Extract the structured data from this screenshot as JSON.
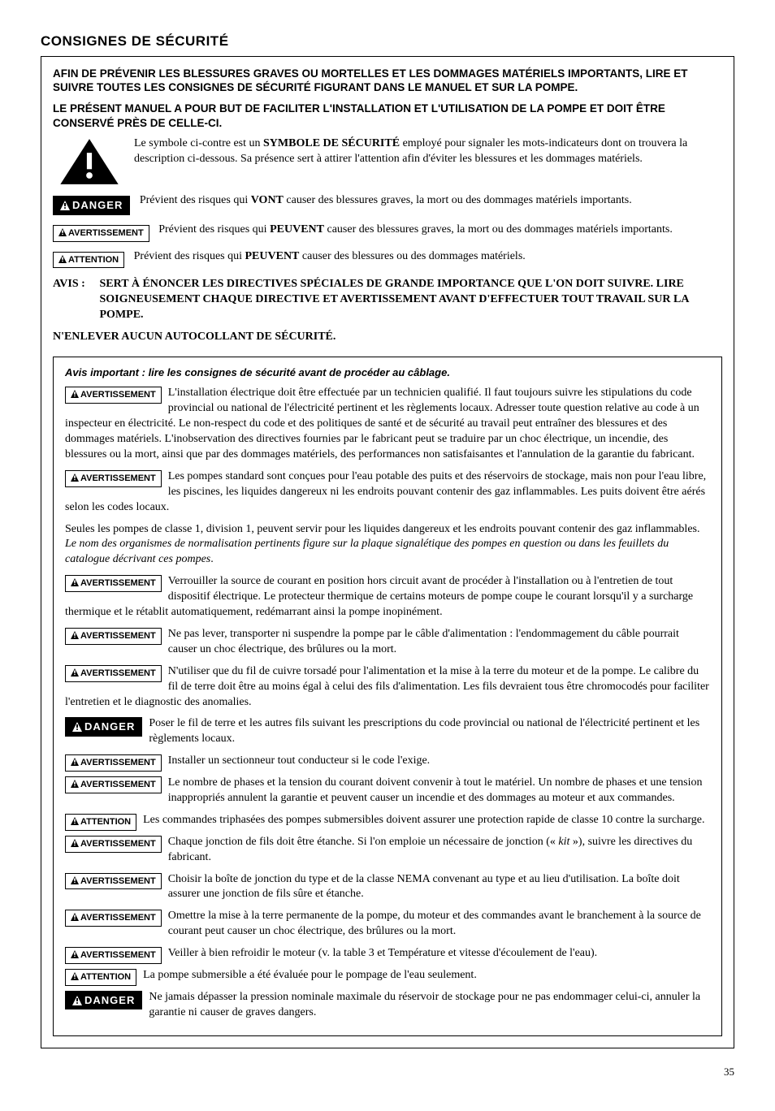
{
  "title": "CONSIGNES DE SÉCURITÉ",
  "intro1": "AFIN DE PRÉVENIR LES BLESSURES GRAVES OU MORTELLES ET LES DOMMAGES MATÉRIELS IMPORTANTS, LIRE ET SUIVRE TOUTES LES CONSIGNES DE SÉCURITÉ FIGURANT DANS LE MANUEL ET SUR LA POMPE.",
  "intro2": "LE PRÉSENT MANUEL A POUR BUT DE FACILITER L'INSTALLATION ET L'UTILISATION DE LA POMPE ET DOIT ÊTRE CONSERVÉ PRÈS DE CELLE-CI.",
  "labels": {
    "danger": "DANGER",
    "avertissement": "AVERTISSEMENT",
    "attention": "ATTENTION",
    "avis": "AVIS :"
  },
  "symbol_desc_a": "Le symbole ci-contre est un ",
  "symbol_desc_b": "SYMBOLE DE SÉCURITÉ",
  "symbol_desc_c": " employé pour signaler les mots-indicateurs dont on trouvera la description ci-dessous. Sa présence sert à attirer l'attention afin d'éviter les blessures et les dommages matériels.",
  "danger_text_a": "Prévient des risques qui ",
  "danger_text_b": "VONT",
  "danger_text_c": " causer des blessures graves, la mort ou des dommages matériels importants.",
  "avert_text_a": "Prévient des risques qui ",
  "avert_text_b": "PEUVENT",
  "avert_text_c": " causer des blessures graves, la mort ou des dommages matériels importants.",
  "attn_text_a": "Prévient des risques qui ",
  "attn_text_b": "PEUVENT",
  "attn_text_c": " causer des blessures ou des dommages matériels.",
  "avis_text": "SERT À ÉNONCER LES DIRECTIVES SPÉCIALES DE GRANDE IMPORTANCE QUE L'ON DOIT SUIVRE. LIRE SOIGNEUSEMENT CHAQUE DIRECTIVE ET AVERTISSEMENT AVANT D'EFFECTUER TOUT TRAVAIL SUR LA POMPE.",
  "no_remove": "N'ENLEVER AUCUN AUTOCOLLANT DE SÉCURITÉ.",
  "notice_title": "Avis important : lire les consignes de sécurité avant de procéder au câblage.",
  "items": [
    {
      "label": "avertissement",
      "text": "L'installation électrique doit être effectuée par un technicien qualifié. Il faut toujours suivre les stipulations du code provincial ou national de l'électricité pertinent et les règlements locaux. Adresser toute question relative au code à un inspecteur en électricité. Le non-respect du code et des politiques de santé et de sécurité au travail peut entraîner des blessures et des dommages matériels. L'inobservation des directives fournies par le fabricant peut se traduire par un choc électrique, un incendie, des blessures ou la mort, ainsi que par des dommages matériels, des performances non satisfaisantes et l'annulation de la garantie du fabricant."
    },
    {
      "label": "avertissement",
      "text": "Les pompes standard sont conçues pour l'eau potable des puits et des réservoirs de stockage, mais non pour l'eau libre, les piscines, les liquides dangereux ni les endroits pouvant contenir des gaz inflammables. Les puits doivent être aérés selon les codes locaux."
    },
    {
      "label": "none",
      "text": "Seules les pompes de classe 1, division 1, peuvent servir pour les liquides dangereux et les endroits pouvant contenir des gaz inflammables. ",
      "italic": "Le nom des organismes de normalisation pertinents figure sur la plaque signalétique des pompes en question ou dans les feuillets du catalogue décrivant ces pompes",
      "tail": "."
    },
    {
      "label": "avertissement",
      "text": "Verrouiller la source de courant en position hors circuit avant de procéder à l'installation ou à l'entretien de tout dispositif électrique. Le protecteur thermique de certains moteurs de pompe coupe le courant lorsqu'il y a surcharge thermique et le rétablit automatiquement, redémarrant ainsi la pompe inopinément."
    },
    {
      "label": "avertissement",
      "text": "Ne pas lever, transporter ni suspendre la pompe par le câble d'alimentation : l'endommagement du câble pourrait causer un choc électrique, des brûlures ou la mort."
    },
    {
      "label": "avertissement",
      "text": "N'utiliser que du fil de cuivre torsadé pour l'alimentation et la mise à la terre du moteur et de la pompe. Le calibre du fil de terre doit être au moins égal à celui des fils d'alimentation. Les fils devraient tous être chromocodés pour faciliter l'entretien et le diagnostic des anomalies."
    },
    {
      "label": "danger",
      "text": "Poser le fil de terre et les autres fils suivant les prescriptions du code provincial ou national de l'électricité pertinent et les règlements locaux."
    },
    {
      "label": "avertissement",
      "text": "Installer un sectionneur tout conducteur si le code l'exige."
    },
    {
      "label": "avertissement",
      "text": "Le nombre de phases et la tension du courant doivent convenir à tout le matériel. Un nombre de phases et une tension inappropriés annulent la garantie et peuvent causer un incendie et des dommages au moteur et aux commandes."
    },
    {
      "label": "attention",
      "text": "Les commandes triphasées des pompes submersibles doivent assurer une protection rapide de classe 10 contre la surcharge."
    },
    {
      "label": "avertissement",
      "text": "Chaque jonction de fils doit être étanche. Si l'on emploie un nécessaire de jonction (« ",
      "italic": "kit",
      "tail": " »), suivre les directives du fabricant."
    },
    {
      "label": "avertissement",
      "text": "Choisir la boîte de jonction du type et de la classe NEMA convenant au type et au lieu d'utilisation. La boîte doit assurer une jonction de fils sûre et étanche."
    },
    {
      "label": "avertissement",
      "text": "Omettre la mise à la terre permanente de la pompe, du moteur et des commandes avant le branchement à la source de courant peut causer un choc électrique, des brûlures ou la mort."
    },
    {
      "label": "avertissement",
      "text": "Veiller à bien refroidir le moteur (v. la table 3 et Température et vitesse d'écoulement de l'eau)."
    },
    {
      "label": "attention",
      "text": "La pompe submersible a été évaluée pour le pompage de l'eau seulement."
    },
    {
      "label": "danger",
      "text": "Ne jamais dépasser la pression nominale maximale du réservoir de stockage pour ne pas endommager celui-ci, annuler la garantie ni causer de graves dangers."
    }
  ],
  "page_number": "35"
}
